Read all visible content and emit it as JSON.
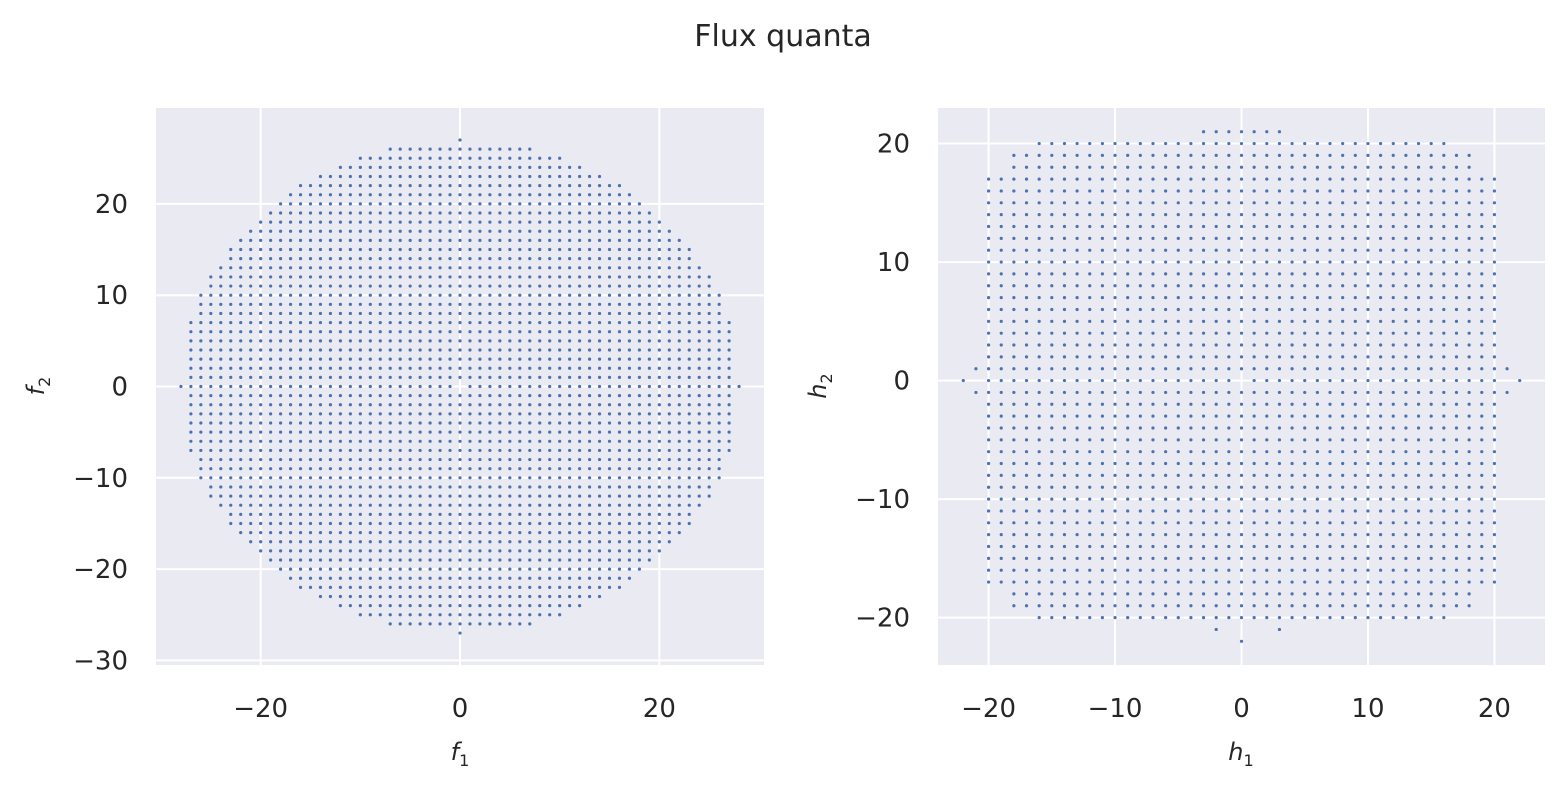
{
  "figure": {
    "suptitle": "Flux quanta"
  },
  "colors": {
    "axes_bg": "#eaeaf2",
    "grid": "#ffffff",
    "point": "#4c72b0",
    "text": "#262626"
  },
  "chart_data": [
    {
      "type": "scatter",
      "xlabel": "f",
      "xlabel_sub": "1",
      "ylabel": "f",
      "ylabel_sub": "2",
      "xlim": [
        -30.5,
        30.5
      ],
      "ylim": [
        -30.5,
        30.5
      ],
      "xticks": [
        -20,
        0,
        20
      ],
      "yticks": [
        -30,
        -20,
        -10,
        0,
        10,
        20
      ],
      "grid": true,
      "points_rule": "all integer (x,y) with x^2/28^2 + y^2/27^2 <= 1, except (0,0)",
      "points_rx": 28,
      "points_ry": 27,
      "excluded_points": [
        [
          0,
          0
        ]
      ]
    },
    {
      "type": "scatter",
      "xlabel": "h",
      "xlabel_sub": "1",
      "ylabel": "h",
      "ylabel_sub": "2",
      "xlim": [
        -24,
        24
      ],
      "ylim": [
        -24,
        23
      ],
      "xticks": [
        -20,
        -10,
        0,
        10,
        20
      ],
      "yticks": [
        -20,
        -10,
        0,
        10,
        20
      ],
      "grid": true,
      "points_rule": "all integer (x,y) with -20<=x<=20, -20<=y<=20 with corner trimming, plus side tips",
      "points_half_width": 20,
      "points_half_height": 20,
      "extra_points": [
        [
          -22,
          0
        ],
        [
          22,
          0
        ],
        [
          -21,
          1
        ],
        [
          -21,
          -1
        ],
        [
          21,
          1
        ],
        [
          21,
          -1
        ],
        [
          0,
          21
        ],
        [
          0,
          -22
        ],
        [
          -1,
          21
        ],
        [
          1,
          21
        ],
        [
          -2,
          21
        ],
        [
          2,
          21
        ],
        [
          -3,
          21
        ],
        [
          3,
          21
        ],
        [
          -2,
          -21
        ],
        [
          3,
          -21
        ]
      ],
      "excluded_points": [
        [
          0,
          0
        ]
      ]
    }
  ]
}
